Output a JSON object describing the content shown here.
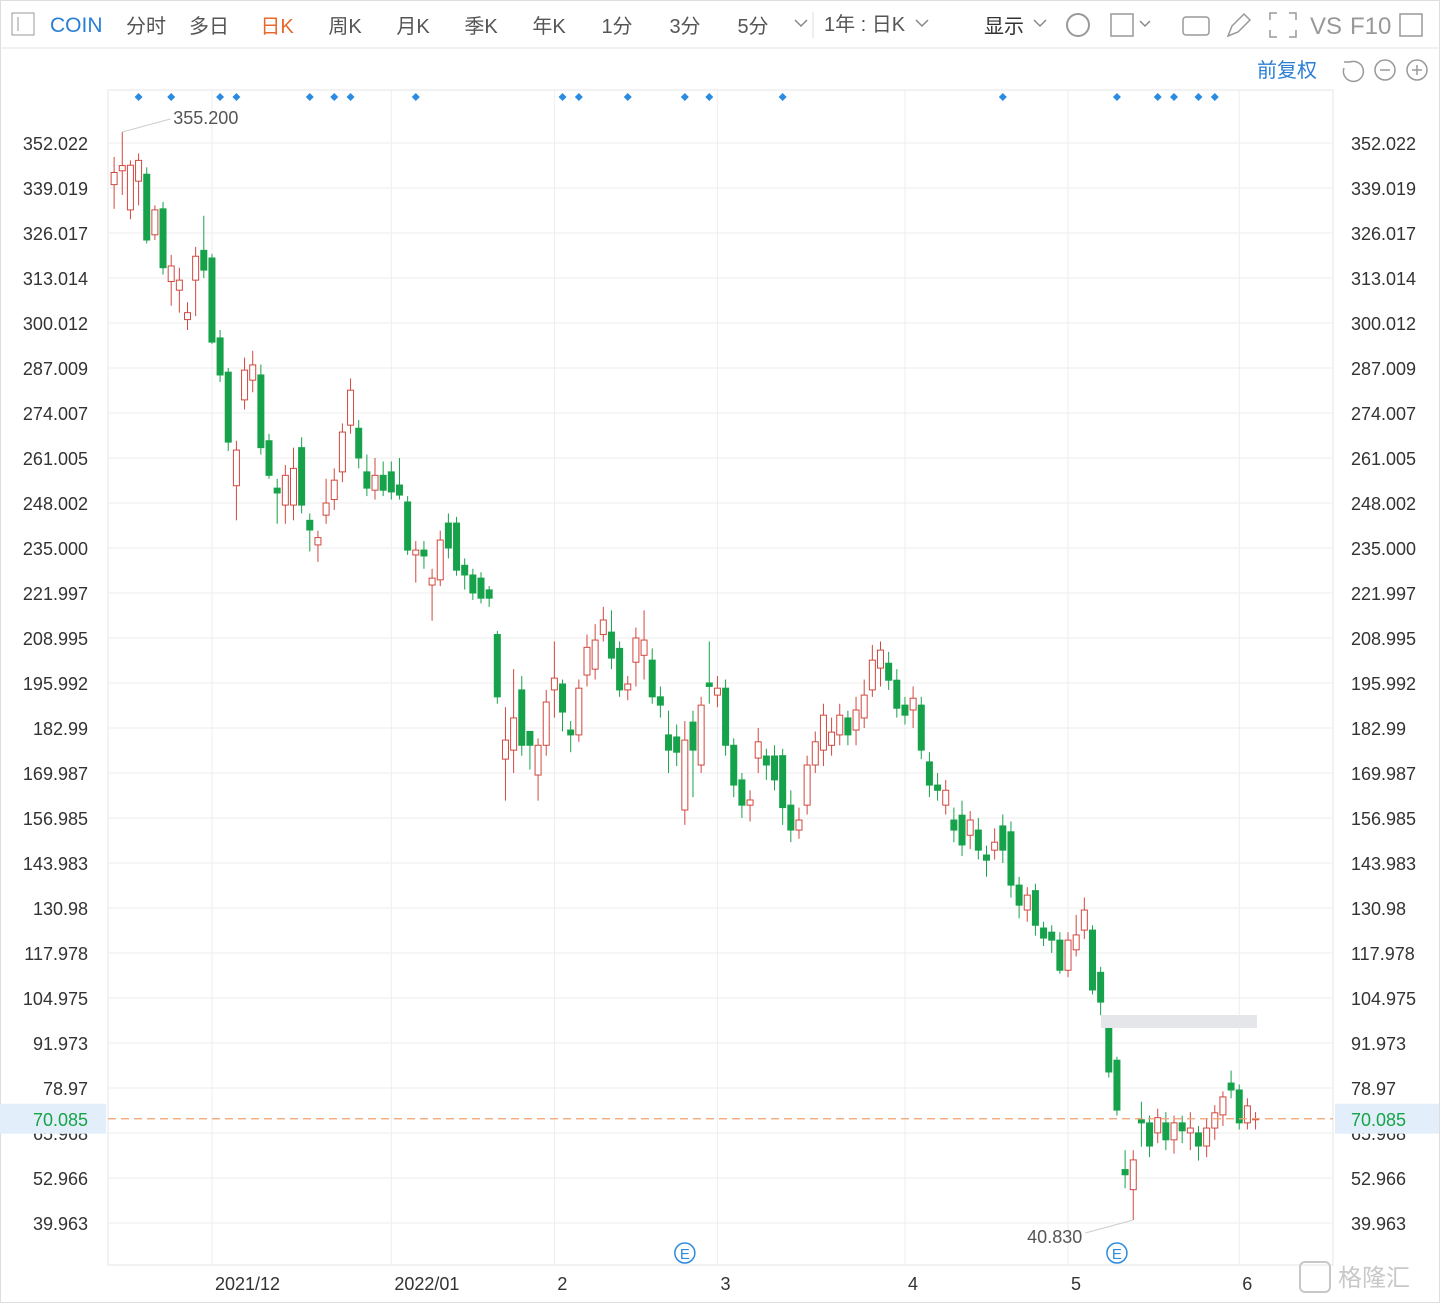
{
  "toolbar": {
    "symbol": "COIN",
    "tabs": [
      "分时",
      "多日",
      "日K",
      "周K",
      "月K",
      "季K",
      "年K",
      "1分",
      "3分",
      "5分"
    ],
    "active_tab": "日K",
    "period": "1年 : 日K",
    "display": "显示",
    "vs": "VS",
    "f10": "F10",
    "adjust": "前复权"
  },
  "watermark": "格隆汇",
  "chart_data": {
    "type": "candlestick",
    "up_color": "#d2473f",
    "down_color": "#16a24a",
    "ylim": [
      27.83,
      367.34
    ],
    "yticks": [
      352.022,
      339.019,
      326.017,
      313.014,
      300.012,
      287.009,
      274.007,
      261.005,
      248.002,
      {
        "value": 235,
        "label": "235.000"
      },
      221.997,
      208.995,
      195.992,
      182.99,
      169.987,
      156.985,
      143.983,
      130.98,
      117.978,
      104.975,
      91.973,
      78.97,
      65.968,
      52.966,
      39.963
    ],
    "xlim": [
      -0.75,
      149.5
    ],
    "xticks": [
      {
        "value": 12,
        "label": "2021/12"
      },
      {
        "value": 34,
        "label": "2022/01"
      },
      {
        "value": 54,
        "label": "2"
      },
      {
        "value": 74,
        "label": "3"
      },
      {
        "value": 97,
        "label": "4"
      },
      {
        "value": 117,
        "label": "5"
      },
      {
        "value": 138,
        "label": "6"
      }
    ],
    "grid": true,
    "last_price": {
      "value": 70.085,
      "label": "70.085"
    },
    "high_label": "355.200",
    "low_label": "40.830",
    "event_markers": [
      3,
      7,
      13,
      15,
      24,
      27,
      29,
      37,
      55,
      57,
      63,
      70,
      73,
      82,
      109,
      123,
      128,
      130,
      133,
      135
    ],
    "earnings_markers": [
      70,
      123
    ],
    "earnings_label": "E",
    "candles": [
      [
        340,
        348,
        333,
        343.5
      ],
      [
        344,
        355.2,
        337,
        345.5
      ],
      [
        332.7,
        347,
        330,
        345.6
      ],
      [
        341,
        349,
        334,
        347
      ],
      [
        343,
        345,
        323,
        324
      ],
      [
        325.5,
        334,
        324,
        332.7
      ],
      [
        333,
        335,
        314,
        316
      ],
      [
        312,
        319.7,
        305,
        316.5
      ],
      [
        309.5,
        316,
        303,
        312.4
      ],
      [
        301,
        306,
        298,
        303
      ],
      [
        312.4,
        322,
        302,
        319.3
      ],
      [
        321,
        331,
        313,
        315.3
      ],
      [
        318.8,
        320,
        294,
        294.5
      ],
      [
        295.7,
        298,
        283,
        285
      ],
      [
        285.8,
        287,
        263,
        265.6
      ],
      [
        253,
        266,
        243,
        263.3
      ],
      [
        277.8,
        290,
        275,
        286.4
      ],
      [
        283.5,
        292,
        280,
        287.9
      ],
      [
        285,
        288,
        262,
        264
      ],
      [
        266,
        268,
        255,
        256
      ],
      [
        252.3,
        255,
        242,
        250.9
      ],
      [
        247.4,
        259,
        242,
        256
      ],
      [
        247.4,
        264,
        243,
        258
      ],
      [
        264,
        267,
        245,
        247.4
      ],
      [
        243,
        245,
        234,
        240.2
      ],
      [
        235.9,
        240,
        231,
        238
      ],
      [
        244.5,
        255,
        242,
        248
      ],
      [
        249,
        258,
        246,
        254.6
      ],
      [
        257,
        271,
        254,
        268.5
      ],
      [
        270.5,
        284,
        268,
        280.6
      ],
      [
        269.6,
        272,
        258,
        261
      ],
      [
        257,
        262,
        250,
        252.3
      ],
      [
        251.7,
        261,
        249,
        256
      ],
      [
        256,
        260,
        250,
        251.7
      ],
      [
        257,
        260,
        249,
        251.2
      ],
      [
        253.2,
        261,
        249,
        250.3
      ],
      [
        248.3,
        250,
        233,
        234.4
      ],
      [
        233,
        237,
        225,
        234.4
      ],
      [
        234.4,
        237,
        229,
        232.7
      ],
      [
        224.3,
        229,
        214,
        226.3
      ],
      [
        225.8,
        240,
        224,
        237.3
      ],
      [
        242.2,
        245,
        232,
        235
      ],
      [
        242.2,
        244,
        227,
        228.6
      ],
      [
        230,
        232,
        223,
        227.2
      ],
      [
        227.2,
        229,
        220,
        222
      ],
      [
        226.3,
        228,
        219,
        220.5
      ],
      [
        222.9,
        224,
        218,
        220.5
      ],
      [
        210,
        211,
        190,
        192
      ],
      [
        174,
        189,
        162,
        179.5
      ],
      [
        176.6,
        200,
        170,
        185.9
      ],
      [
        194,
        198,
        175,
        178
      ],
      [
        182,
        182,
        171,
        178
      ],
      [
        169.4,
        180,
        162,
        178
      ],
      [
        178,
        194,
        175,
        190.5
      ],
      [
        194,
        208,
        186,
        197.4
      ],
      [
        195.7,
        197,
        182,
        187.6
      ],
      [
        182.4,
        185,
        176,
        181
      ],
      [
        181,
        197,
        179,
        194.5
      ],
      [
        198.3,
        210,
        195,
        206.3
      ],
      [
        200,
        213,
        197,
        208.4
      ],
      [
        210,
        218,
        208,
        214.2
      ],
      [
        210.7,
        217,
        200,
        203.2
      ],
      [
        206,
        208,
        192,
        194
      ],
      [
        194,
        198,
        191,
        195.7
      ],
      [
        202,
        212,
        195,
        209
      ],
      [
        204,
        217,
        197,
        208.4
      ],
      [
        202.6,
        206,
        190,
        192
      ],
      [
        192,
        195,
        186,
        189.6
      ],
      [
        181,
        188,
        170,
        176.6
      ],
      [
        180.4,
        184,
        172,
        176
      ],
      [
        159.3,
        185,
        155,
        179.5
      ],
      [
        184.7,
        188,
        163,
        176.6
      ],
      [
        172.3,
        192,
        170,
        189.6
      ],
      [
        196,
        208,
        190,
        195
      ],
      [
        192.5,
        198,
        189,
        194.5
      ],
      [
        194.5,
        197,
        175,
        178
      ],
      [
        178,
        180,
        163,
        166.5
      ],
      [
        168,
        170,
        157,
        160.7
      ],
      [
        160.7,
        165,
        156,
        162.2
      ],
      [
        174.3,
        183,
        170,
        179
      ],
      [
        174.9,
        177,
        168,
        172.3
      ],
      [
        174.9,
        178,
        165,
        168
      ],
      [
        175,
        177,
        155,
        160
      ],
      [
        160.7,
        165,
        150,
        153.5
      ],
      [
        153.5,
        160,
        151,
        156.4
      ],
      [
        160.7,
        175,
        158,
        172.3
      ],
      [
        172.3,
        182,
        170,
        179
      ],
      [
        176.6,
        190,
        172,
        186.7
      ],
      [
        178,
        186,
        175,
        181.8
      ],
      [
        181,
        190,
        178,
        186.7
      ],
      [
        185.9,
        188,
        178,
        181
      ],
      [
        182.4,
        192,
        178,
        188.2
      ],
      [
        185.9,
        197,
        183,
        192.5
      ],
      [
        194,
        207,
        192,
        202.6
      ],
      [
        200.3,
        208,
        195,
        205.5
      ],
      [
        201.7,
        205,
        194,
        196.8
      ],
      [
        196.8,
        200,
        186,
        188.7
      ],
      [
        189.6,
        192,
        184,
        186.7
      ],
      [
        188.2,
        195,
        183,
        191.6
      ],
      [
        189.6,
        192,
        174,
        176.6
      ],
      [
        173.2,
        176,
        163,
        166.5
      ],
      [
        166.5,
        170,
        162,
        165
      ],
      [
        160.7,
        168,
        158,
        165
      ],
      [
        156.4,
        160,
        150,
        153.5
      ],
      [
        157.8,
        162,
        146,
        149.2
      ],
      [
        152,
        159,
        148,
        156.4
      ],
      [
        153.5,
        157,
        145,
        147.7
      ],
      [
        146.3,
        149,
        140,
        144.8
      ],
      [
        147.7,
        154,
        145,
        150
      ],
      [
        154.7,
        158,
        144,
        147.7
      ],
      [
        153,
        156,
        134,
        137.6
      ],
      [
        137.6,
        140,
        128,
        131.8
      ],
      [
        130.4,
        137,
        127,
        134.7
      ],
      [
        136,
        138,
        123,
        126
      ],
      [
        125.2,
        127,
        120,
        122.3
      ],
      [
        124,
        126,
        118,
        121.7
      ],
      [
        121.7,
        124,
        112,
        113
      ],
      [
        113,
        124,
        111,
        121.7
      ],
      [
        118.9,
        129,
        117,
        123.2
      ],
      [
        124.6,
        134,
        122,
        130.4
      ],
      [
        124.6,
        126,
        106,
        107.3
      ],
      [
        112.4,
        114,
        100,
        103.8
      ],
      [
        96.3,
        98,
        82,
        83.6
      ],
      [
        87,
        88,
        71,
        72.6
      ],
      [
        55.4,
        61,
        50,
        53.9
      ],
      [
        49.6,
        61,
        40.83,
        58.2
      ],
      [
        69.8,
        75,
        62,
        68.9
      ],
      [
        68.9,
        71,
        59,
        62.2
      ],
      [
        66,
        73,
        63,
        70.4
      ],
      [
        68.9,
        72,
        61,
        64
      ],
      [
        64,
        71,
        60,
        68.9
      ],
      [
        68.9,
        71,
        63,
        66.6
      ],
      [
        66,
        72,
        61,
        67.4
      ],
      [
        66,
        68,
        58,
        62.2
      ],
      [
        62.2,
        70,
        59,
        67.4
      ],
      [
        67.4,
        74,
        64,
        71.8
      ],
      [
        71.2,
        78,
        68,
        76.4
      ],
      [
        80.4,
        84,
        76,
        78.4
      ],
      [
        78.4,
        80,
        67,
        68.9
      ],
      [
        68.9,
        76,
        67,
        73.8
      ],
      [
        69.8,
        72,
        67,
        70.085
      ]
    ]
  }
}
